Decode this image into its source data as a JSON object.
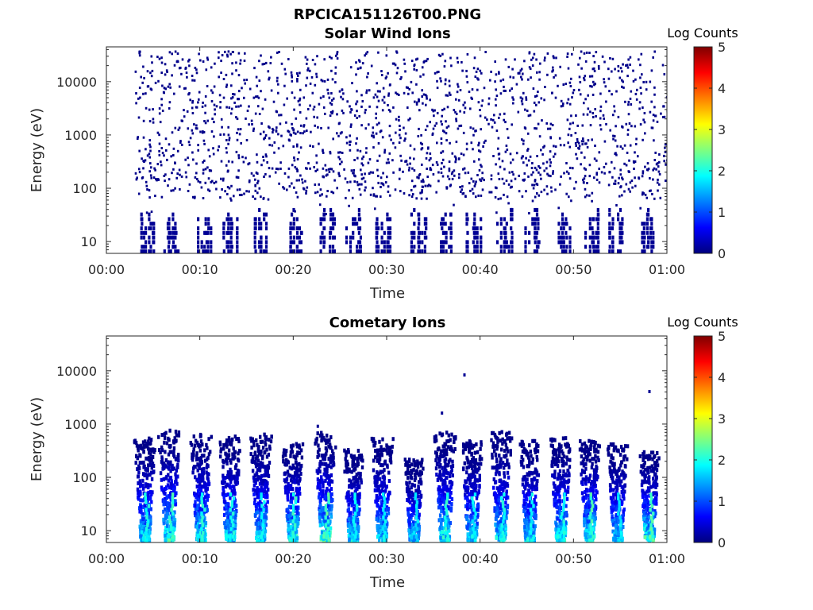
{
  "figure_title": "RPCICA151126T00.PNG",
  "chart_data": [
    {
      "type": "heatmap",
      "title": "Solar Wind Ions",
      "xlabel": "Time",
      "ylabel": "Energy (eV)",
      "x_ticks": [
        "00:00",
        "00:10",
        "00:20",
        "00:30",
        "00:40",
        "00:50",
        "01:00"
      ],
      "x_range_minutes": [
        0,
        60
      ],
      "y_scale": "log",
      "y_ticks": [
        10,
        100,
        1000,
        10000
      ],
      "y_tick_labels": [
        "10",
        "100",
        "1000",
        "10000"
      ],
      "y_range": [
        6,
        45000
      ],
      "colorbar": {
        "label": "Log Counts",
        "ticks": [
          "0",
          "1",
          "2",
          "3",
          "4",
          "5"
        ],
        "range": [
          0,
          5
        ],
        "colormap": "jet"
      },
      "description_of_data": "sparse single-count scatter 6 eV to ~30 keV, denser vertical streaks below 40 eV",
      "streak_minutes": [
        4.2,
        6.8,
        10.3,
        13.2,
        16.4,
        20.0,
        23.5,
        26.3,
        29.5,
        33.3,
        36.3,
        39.2,
        42.5,
        45.5,
        48.8,
        51.8,
        54.5,
        58.0
      ],
      "seed": 7
    },
    {
      "type": "heatmap",
      "title": "Cometary Ions",
      "xlabel": "Time",
      "ylabel": "Energy (eV)",
      "x_ticks": [
        "00:00",
        "00:10",
        "00:20",
        "00:30",
        "00:40",
        "00:50",
        "01:00"
      ],
      "x_range_minutes": [
        0,
        60
      ],
      "y_scale": "log",
      "y_ticks": [
        10,
        100,
        1000,
        10000
      ],
      "y_tick_labels": [
        "10",
        "100",
        "1000",
        "10000"
      ],
      "y_range": [
        6,
        45000
      ],
      "colorbar": {
        "label": "Log Counts",
        "ticks": [
          "0",
          "1",
          "2",
          "3",
          "4",
          "5"
        ],
        "range": [
          0,
          5
        ],
        "colormap": "jet"
      },
      "bursts": [
        {
          "t": 4.2,
          "top_eV": 500,
          "peak": 2.1
        },
        {
          "t": 6.8,
          "top_eV": 700,
          "peak": 2.3
        },
        {
          "t": 10.2,
          "top_eV": 600,
          "peak": 2.2
        },
        {
          "t": 13.3,
          "top_eV": 550,
          "peak": 2.1
        },
        {
          "t": 16.6,
          "top_eV": 600,
          "peak": 2.0
        },
        {
          "t": 20.0,
          "top_eV": 400,
          "peak": 2.2
        },
        {
          "t": 23.5,
          "top_eV": 650,
          "peak": 2.4
        },
        {
          "t": 26.5,
          "top_eV": 300,
          "peak": 2.0
        },
        {
          "t": 29.6,
          "top_eV": 500,
          "peak": 2.0
        },
        {
          "t": 33.0,
          "top_eV": 200,
          "peak": 1.9
        },
        {
          "t": 36.3,
          "top_eV": 650,
          "peak": 2.2
        },
        {
          "t": 39.2,
          "top_eV": 450,
          "peak": 2.0
        },
        {
          "t": 42.3,
          "top_eV": 650,
          "peak": 2.1
        },
        {
          "t": 45.4,
          "top_eV": 450,
          "peak": 2.0
        },
        {
          "t": 48.7,
          "top_eV": 500,
          "peak": 2.1
        },
        {
          "t": 51.8,
          "top_eV": 450,
          "peak": 2.3
        },
        {
          "t": 54.8,
          "top_eV": 400,
          "peak": 1.9
        },
        {
          "t": 58.2,
          "top_eV": 300,
          "peak": 2.4
        }
      ],
      "outliers": [
        {
          "t": 38.2,
          "eV": 7800
        },
        {
          "t": 58.0,
          "eV": 3800
        },
        {
          "t": 35.8,
          "eV": 1500
        },
        {
          "t": 22.5,
          "eV": 850
        }
      ],
      "seed": 13
    }
  ]
}
